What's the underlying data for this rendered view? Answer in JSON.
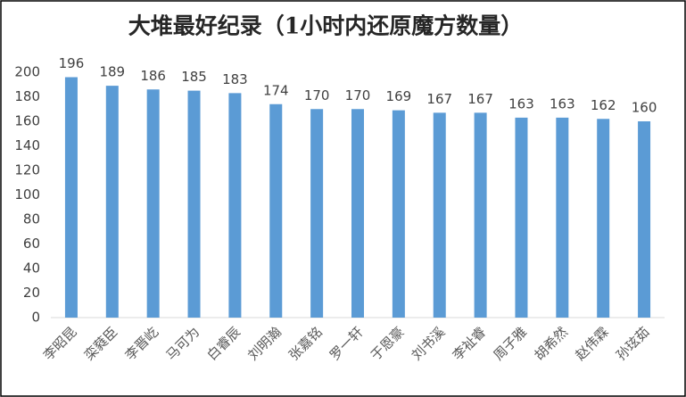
{
  "chart_data": {
    "type": "bar",
    "title": "大堆最好纪录（1小时内还原魔方数量）",
    "categories": [
      "李昭昆",
      "栾蕤臣",
      "李晋屹",
      "马可为",
      "白睿辰",
      "刘明瀚",
      "张嘉铭",
      "罗一轩",
      "于恩豪",
      "刘书溪",
      "李祉睿",
      "周子雅",
      "胡希然",
      "赵伟霖",
      "孙玹茹"
    ],
    "values": [
      196,
      189,
      186,
      185,
      183,
      174,
      170,
      170,
      169,
      167,
      167,
      163,
      163,
      162,
      160
    ],
    "color": "#5b9bd5",
    "ylim": [
      0,
      200
    ],
    "yticks": [
      0,
      20,
      40,
      60,
      80,
      100,
      120,
      140,
      160,
      180,
      200
    ],
    "grid": false
  }
}
